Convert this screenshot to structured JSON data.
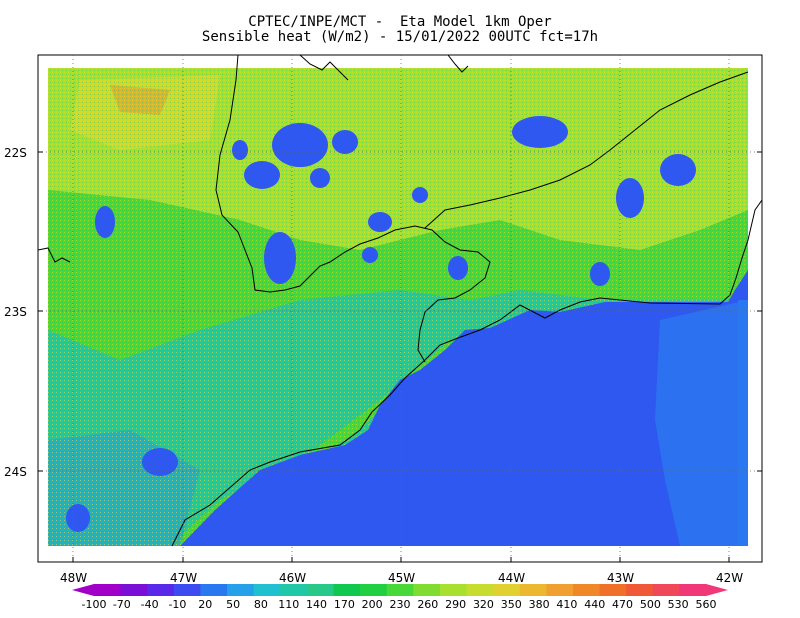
{
  "title": {
    "line1": "CPTEC/INPE/MCT -  Eta Model 1km Oper",
    "line2": "Sensible heat (W/m2) - 15/01/2022 00UTC fct=17h"
  },
  "lat_labels": [
    "22S",
    "23S",
    "24S"
  ],
  "lon_labels": [
    "48W",
    "47W",
    "46W",
    "45W",
    "44W",
    "43W",
    "42W"
  ],
  "colorbar": {
    "labels": [
      "-100",
      "-70",
      "-40",
      "-10",
      "20",
      "50",
      "80",
      "110",
      "140",
      "170",
      "200",
      "230",
      "260",
      "290",
      "320",
      "350",
      "380",
      "410",
      "440",
      "470",
      "500",
      "530",
      "560"
    ],
    "colors": [
      "#a000c8",
      "#7a10d6",
      "#5a28e8",
      "#3c4cf0",
      "#2a78f0",
      "#26a0e8",
      "#20c0d0",
      "#20c8a8",
      "#28c888",
      "#10c850",
      "#20d040",
      "#48d838",
      "#80dc30",
      "#a8e030",
      "#c8dc30",
      "#e0d030",
      "#ecb830",
      "#f0a030",
      "#f08828",
      "#f07028",
      "#f05838",
      "#f04858",
      "#f03878"
    ]
  },
  "map": {
    "ocean_color": "#2e58f0",
    "land_colors": [
      "#a8e030",
      "#20d040",
      "#20c8a8",
      "#26a0e8"
    ]
  }
}
